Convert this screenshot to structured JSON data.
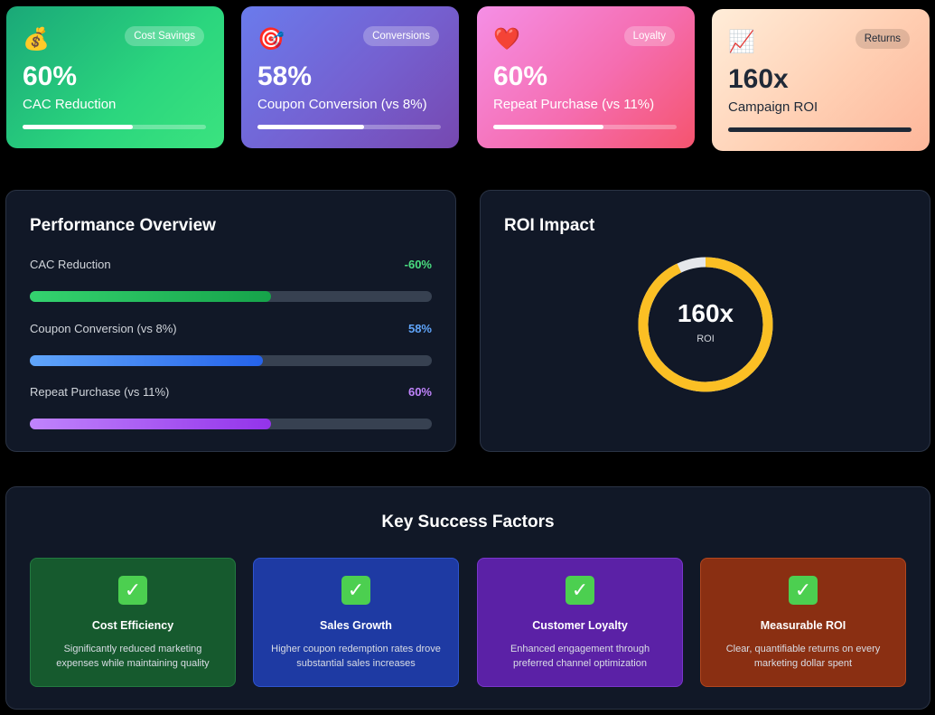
{
  "metrics": [
    {
      "emoji": "💰",
      "badge": "Cost Savings",
      "value": "60%",
      "label": "CAC Reduction",
      "progress": 0.6
    },
    {
      "emoji": "🎯",
      "badge": "Conversions",
      "value": "58%",
      "label": "Coupon Conversion (vs 8%)",
      "progress": 0.58
    },
    {
      "emoji": "❤️",
      "badge": "Loyalty",
      "value": "60%",
      "label": "Repeat Purchase (vs 11%)",
      "progress": 0.6
    },
    {
      "emoji": "📈",
      "badge": "Returns",
      "value": "160x",
      "label": "Campaign ROI",
      "progress": 1.0
    }
  ],
  "performance": {
    "title": "Performance Overview",
    "rows": [
      {
        "label": "CAC Reduction",
        "value": "-60%",
        "progress": 0.6,
        "color": "#4ade80",
        "fill_from": "#34d36f",
        "fill_to": "#16a34a"
      },
      {
        "label": "Coupon Conversion (vs 8%)",
        "value": "58%",
        "progress": 0.58,
        "color": "#60a5fa",
        "fill_from": "#60a5fa",
        "fill_to": "#2563eb"
      },
      {
        "label": "Repeat Purchase (vs 11%)",
        "value": "60%",
        "progress": 0.6,
        "color": "#c084fc",
        "fill_from": "#c084fc",
        "fill_to": "#9333ea"
      }
    ]
  },
  "roi": {
    "title": "ROI Impact",
    "value": "160x",
    "label": "ROI",
    "progress": 0.93,
    "ring_color": "#fbbf24",
    "track_color": "#e5e7eb"
  },
  "factors": {
    "title": "Key Success Factors",
    "items": [
      {
        "title": "Cost Efficiency",
        "desc": "Significantly reduced marketing expenses while maintaining quality"
      },
      {
        "title": "Sales Growth",
        "desc": "Higher coupon redemption rates drove substantial sales increases"
      },
      {
        "title": "Customer Loyalty",
        "desc": "Enhanced engagement through preferred channel optimization"
      },
      {
        "title": "Measurable ROI",
        "desc": "Clear, quantifiable returns on every marketing dollar spent"
      }
    ]
  }
}
